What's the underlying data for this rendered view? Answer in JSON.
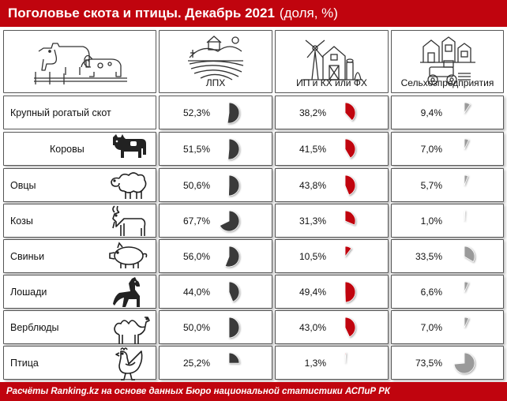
{
  "title": "Поголовье скота и птицы. Декабрь 2021",
  "unit": "(доля, %)",
  "columns": [
    "ЛПХ",
    "ИП и КХ или ФХ",
    "Сельхозпредприятия"
  ],
  "rows": [
    {
      "label": "Крупный рогатый скот",
      "icon": "cow-herd-icon",
      "values": [
        "52,3%",
        "38,2%",
        "9,4%"
      ]
    },
    {
      "label": "Коровы",
      "icon": "cow-icon",
      "values": [
        "51,5%",
        "41,5%",
        "7,0%"
      ]
    },
    {
      "label": "Овцы",
      "icon": "sheep-icon",
      "values": [
        "50,6%",
        "43,8%",
        "5,7%"
      ]
    },
    {
      "label": "Козы",
      "icon": "goat-icon",
      "values": [
        "67,7%",
        "31,3%",
        "1,0%"
      ]
    },
    {
      "label": "Свиньи",
      "icon": "pig-icon",
      "values": [
        "56,0%",
        "10,5%",
        "33,5%"
      ]
    },
    {
      "label": "Лошади",
      "icon": "horse-icon",
      "values": [
        "44,0%",
        "49,4%",
        "6,6%"
      ]
    },
    {
      "label": "Верблюды",
      "icon": "camel-icon",
      "values": [
        "50,0%",
        "43,0%",
        "7,0%"
      ]
    },
    {
      "label": "Птица",
      "icon": "chicken-icon",
      "values": [
        "25,2%",
        "1,3%",
        "73,5%"
      ]
    }
  ],
  "footer": "Расчёты Ranking.kz на основе данных Бюро национальной статистики АСПиР РК",
  "colors": {
    "brand": "#c0040e",
    "lph": "#3a3a3a",
    "ip": "#c0040e",
    "agro": "#9a9a9a"
  },
  "chart_data": {
    "type": "table",
    "title": "Поголовье скота и птицы. Декабрь 2021",
    "subtitle": "(доля, %)",
    "categories": [
      "Крупный рогатый скот",
      "Коровы",
      "Овцы",
      "Козы",
      "Свиньи",
      "Лошади",
      "Верблюды",
      "Птица"
    ],
    "series": [
      {
        "name": "ЛПХ",
        "values": [
          52.3,
          51.5,
          50.6,
          67.7,
          56.0,
          44.0,
          50.0,
          25.2
        ]
      },
      {
        "name": "ИП и КХ или ФХ",
        "values": [
          38.2,
          41.5,
          43.8,
          31.3,
          10.5,
          49.4,
          43.0,
          1.3
        ]
      },
      {
        "name": "Сельхозпредприятия",
        "values": [
          9.4,
          7.0,
          5.7,
          1.0,
          33.5,
          6.6,
          7.0,
          73.5
        ]
      }
    ]
  }
}
